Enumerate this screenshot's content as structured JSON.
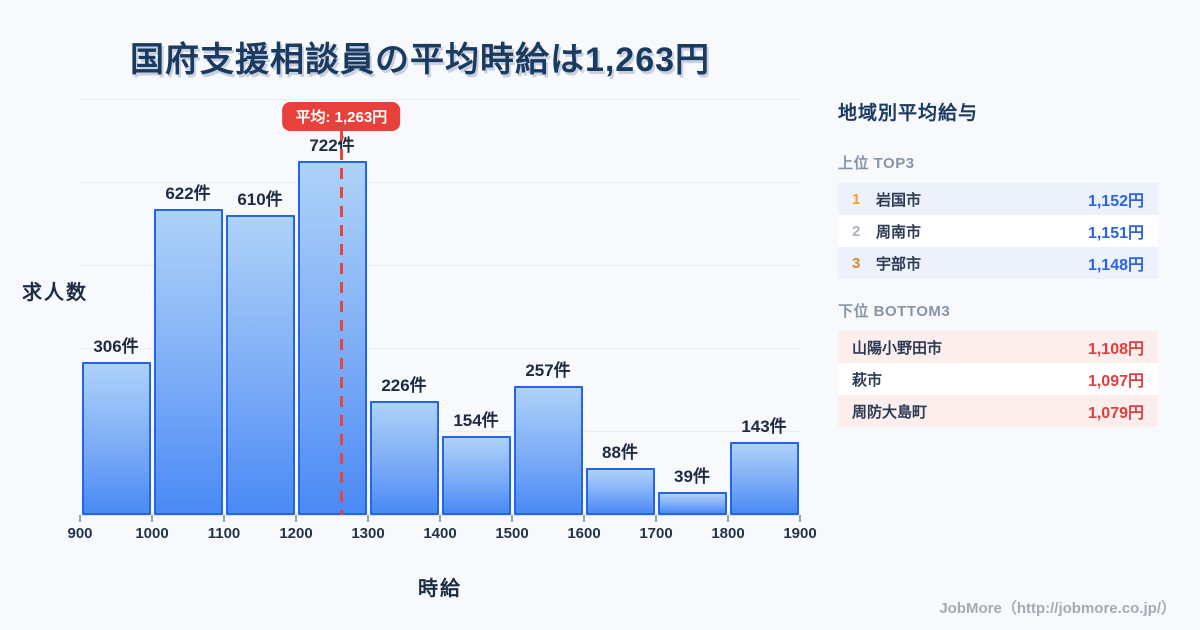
{
  "page": {
    "title": "国府支援相談員の平均時給は1,263円",
    "footer": "JobMore（http://jobmore.co.jp/）",
    "background": "#f7f9fc"
  },
  "chart_data": {
    "type": "bar",
    "title": "国府支援相談員の平均時給は1,263円",
    "xlabel": "時給",
    "ylabel": "求人数",
    "xlim": [
      900,
      1900
    ],
    "grid": "horizontal",
    "x_ticks": [
      "900",
      "1000",
      "1100",
      "1200",
      "1300",
      "1400",
      "1500",
      "1600",
      "1700",
      "1800",
      "1900"
    ],
    "bins": [
      {
        "range": [
          900,
          1000
        ],
        "count": 306,
        "label": "306件"
      },
      {
        "range": [
          1000,
          1100
        ],
        "count": 622,
        "label": "622件"
      },
      {
        "range": [
          1100,
          1200
        ],
        "count": 610,
        "label": "610件"
      },
      {
        "range": [
          1200,
          1300
        ],
        "count": 722,
        "label": "722件"
      },
      {
        "range": [
          1300,
          1400
        ],
        "count": 226,
        "label": "226件"
      },
      {
        "range": [
          1400,
          1500
        ],
        "count": 154,
        "label": "154件"
      },
      {
        "range": [
          1500,
          1600
        ],
        "count": 257,
        "label": "257件"
      },
      {
        "range": [
          1600,
          1700
        ],
        "count": 88,
        "label": "88件"
      },
      {
        "range": [
          1700,
          1800
        ],
        "count": 39,
        "label": "39件"
      },
      {
        "range": [
          1800,
          1900
        ],
        "count": 143,
        "label": "143件"
      }
    ],
    "average": {
      "value": 1263,
      "label": "平均: 1,263円"
    },
    "colors": {
      "bar_fill_top": "#aed2f8",
      "bar_fill_bottom": "#4a8af5",
      "bar_border": "#2365e4",
      "average_red": "#e8413c",
      "gridline": "#e8ecf4"
    }
  },
  "side_panel": {
    "title": "地域別平均給与",
    "top": {
      "heading": "上位 TOP3",
      "rows": [
        {
          "rank": "1",
          "name": "岩国市",
          "value": "1,152円"
        },
        {
          "rank": "2",
          "name": "周南市",
          "value": "1,151円"
        },
        {
          "rank": "3",
          "name": "宇部市",
          "value": "1,148円"
        }
      ],
      "value_color": "#2b63e8",
      "rank_colors": [
        "#f2a71b",
        "#a8b0bd",
        "#e0862e"
      ]
    },
    "bottom": {
      "heading": "下位 BOTTOM3",
      "rows": [
        {
          "name": "山陽小野田市",
          "value": "1,108円"
        },
        {
          "name": "萩市",
          "value": "1,097円"
        },
        {
          "name": "周防大島町",
          "value": "1,079円"
        }
      ],
      "value_color": "#e23d3d"
    }
  }
}
